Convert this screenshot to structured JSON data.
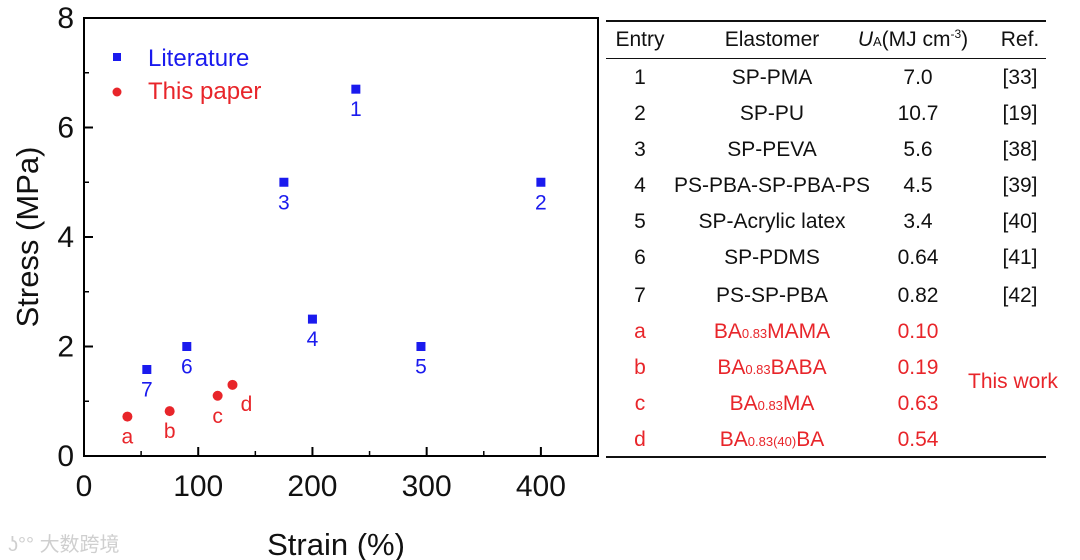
{
  "chart_data": {
    "type": "scatter",
    "xlabel": "Strain (%)",
    "ylabel": "Stress (MPa)",
    "xlim": [
      0,
      450
    ],
    "ylim": [
      0,
      8
    ],
    "xticks": [
      0,
      100,
      200,
      300,
      400
    ],
    "yticks": [
      0,
      2,
      4,
      6,
      8
    ],
    "legend_position": "top-left",
    "series": [
      {
        "name": "Literature",
        "color": "#1a1aee",
        "marker": "square",
        "points": [
          {
            "x": 238,
            "y": 6.7,
            "label": "1"
          },
          {
            "x": 400,
            "y": 5.0,
            "label": "2"
          },
          {
            "x": 175,
            "y": 5.0,
            "label": "3"
          },
          {
            "x": 200,
            "y": 2.5,
            "label": "4"
          },
          {
            "x": 295,
            "y": 2.0,
            "label": "5"
          },
          {
            "x": 90,
            "y": 2.0,
            "label": "6"
          },
          {
            "x": 55,
            "y": 1.58,
            "label": "7"
          }
        ]
      },
      {
        "name": "This paper",
        "color": "#e8252a",
        "marker": "circle",
        "points": [
          {
            "x": 38,
            "y": 0.72,
            "label": "a"
          },
          {
            "x": 75,
            "y": 0.82,
            "label": "b"
          },
          {
            "x": 117,
            "y": 1.1,
            "label": "c"
          },
          {
            "x": 130,
            "y": 1.3,
            "label": "d"
          }
        ]
      }
    ]
  },
  "table": {
    "headers": {
      "entry": "Entry",
      "elastomer": "Elastomer",
      "ua_symbol": "U",
      "ua_sub": "A",
      "ua_unit": "(MJ cm",
      "ua_sup": "-3",
      "ua_close": ")",
      "ref": "Ref."
    },
    "literature_rows": [
      {
        "entry": "1",
        "elastomer": "SP-PMA",
        "ua": "7.0",
        "ref": "[33]"
      },
      {
        "entry": "2",
        "elastomer": "SP-PU",
        "ua": "10.7",
        "ref": "[19]"
      },
      {
        "entry": "3",
        "elastomer": "SP-PEVA",
        "ua": "5.6",
        "ref": "[38]"
      },
      {
        "entry": "4",
        "elastomer": "PS-PBA-SP-PBA-PS",
        "ua": "4.5",
        "ref": "[39]"
      },
      {
        "entry": "5",
        "elastomer": "SP-Acrylic latex",
        "ua": "3.4",
        "ref": "[40]"
      },
      {
        "entry": "6",
        "elastomer": "SP-PDMS",
        "ua": "0.64",
        "ref": "[41]"
      },
      {
        "entry": "7",
        "elastomer": "PS-SP-PBA",
        "ua": "0.82",
        "ref": "[42]"
      }
    ],
    "this_work_rows": [
      {
        "entry": "a",
        "el_pre": "BA",
        "el_sub": "0.83",
        "el_post": "MAMA",
        "ua": "0.10"
      },
      {
        "entry": "b",
        "el_pre": "BA",
        "el_sub": "0.83",
        "el_post": "BABA",
        "ua": "0.19"
      },
      {
        "entry": "c",
        "el_pre": "BA",
        "el_sub": "0.83",
        "el_post": "MA",
        "ua": "0.63"
      },
      {
        "entry": "d",
        "el_pre": "BA",
        "el_sub": "0.83(40)",
        "el_post": "BA",
        "ua": "0.54"
      }
    ],
    "this_work_label": "This work"
  },
  "watermark": "大数跨境"
}
